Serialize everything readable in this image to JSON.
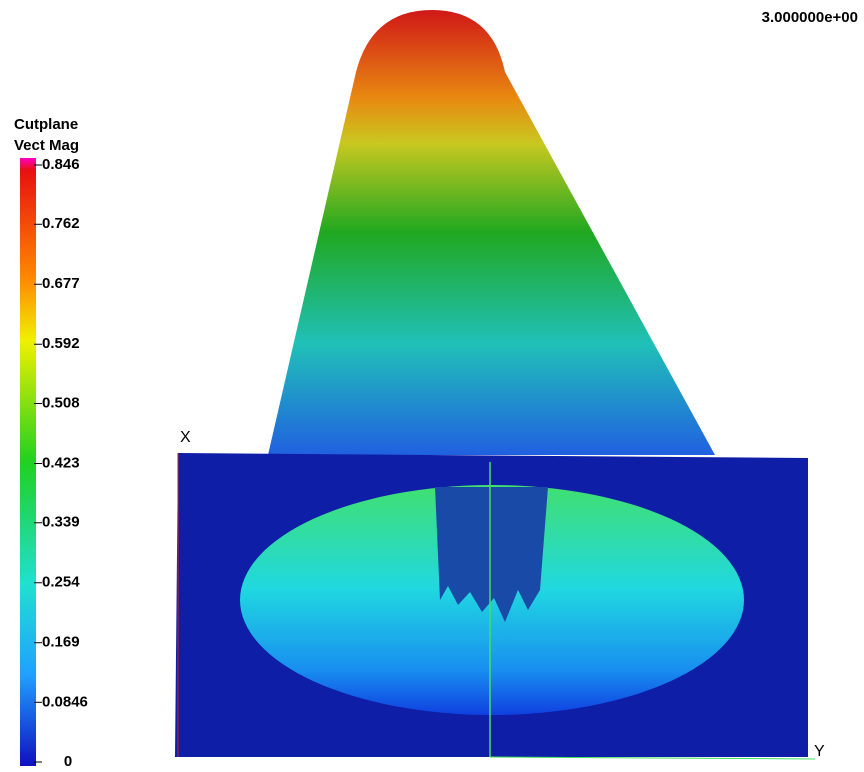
{
  "time_label": "3.000000e+00",
  "legend": {
    "title_lines": [
      "Cutplane",
      "Vect Mag"
    ],
    "ticks": [
      0.846,
      0.762,
      0.677,
      0.592,
      0.508,
      0.423,
      0.339,
      0.254,
      0.169,
      0.0846,
      0
    ]
  },
  "axes": {
    "x": "X",
    "y": "Y"
  }
}
